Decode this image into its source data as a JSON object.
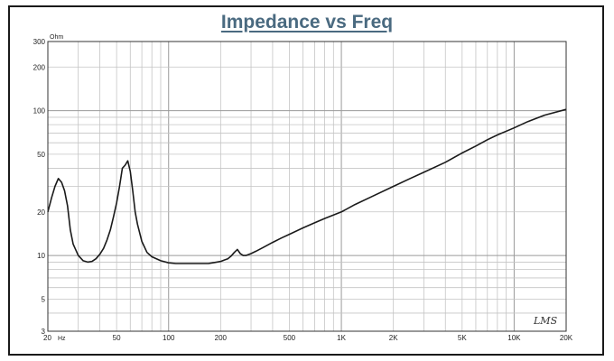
{
  "chart_data": {
    "type": "line",
    "title": "Impedance vs Freq",
    "xlabel": "",
    "ylabel": "",
    "x_unit": "Hz",
    "y_unit": "Ohm",
    "x_scale": "log",
    "y_scale": "log",
    "xlim": [
      20,
      20000
    ],
    "ylim": [
      3,
      300
    ],
    "grid": true,
    "x_tick_labels": [
      {
        "value": 50,
        "label": "50"
      },
      {
        "value": 100,
        "label": "100"
      },
      {
        "value": 200,
        "label": "200"
      },
      {
        "value": 500,
        "label": "500"
      },
      {
        "value": 1000,
        "label": "1K"
      },
      {
        "value": 2000,
        "label": "2K"
      },
      {
        "value": 5000,
        "label": "5K"
      },
      {
        "value": 10000,
        "label": "10K"
      },
      {
        "value": 20000,
        "label": "20K"
      }
    ],
    "x_min_label": "20",
    "y_tick_labels": [
      {
        "value": 200,
        "label": "200"
      },
      {
        "value": 100,
        "label": "100"
      },
      {
        "value": 50,
        "label": "50"
      },
      {
        "value": 20,
        "label": "20"
      },
      {
        "value": 10,
        "label": "10"
      },
      {
        "value": 5,
        "label": "5"
      },
      {
        "value": 3,
        "label": "3"
      }
    ],
    "y_max_label": "300",
    "series": [
      {
        "color": "#1a1a1a",
        "x": [
          20,
          21,
          22,
          23,
          24,
          25,
          26,
          27,
          28,
          30,
          32,
          34,
          36,
          38,
          40,
          42,
          44,
          46,
          48,
          50,
          52,
          54,
          56,
          58,
          60,
          62,
          64,
          66,
          70,
          75,
          80,
          90,
          100,
          110,
          120,
          130,
          140,
          150,
          160,
          170,
          180,
          190,
          200,
          210,
          220,
          230,
          240,
          250,
          260,
          270,
          280,
          300,
          320,
          350,
          400,
          450,
          500,
          600,
          700,
          800,
          900,
          1000,
          1200,
          1500,
          2000,
          2500,
          3000,
          4000,
          5000,
          6000,
          7000,
          8000,
          10000,
          12000,
          15000,
          20000
        ],
        "y": [
          20,
          25,
          30,
          34,
          32,
          28,
          22,
          15,
          12,
          10,
          9.2,
          9.0,
          9.1,
          9.5,
          10.2,
          11.2,
          12.8,
          15,
          18.5,
          23,
          30,
          40,
          42,
          45,
          38,
          28,
          20,
          16.5,
          12.5,
          10.5,
          9.8,
          9.2,
          8.9,
          8.8,
          8.8,
          8.8,
          8.8,
          8.8,
          8.8,
          8.8,
          8.9,
          9.0,
          9.1,
          9.3,
          9.5,
          9.9,
          10.5,
          11.0,
          10.3,
          10.0,
          10.0,
          10.3,
          10.7,
          11.3,
          12.3,
          13.2,
          14.0,
          15.5,
          16.8,
          18.0,
          19.0,
          20.0,
          22.5,
          25.5,
          30.0,
          34.0,
          37.5,
          44.0,
          51.0,
          57.0,
          63.0,
          68.0,
          76.0,
          84.0,
          93.0,
          102.0
        ]
      }
    ]
  },
  "watermark": "LMS"
}
